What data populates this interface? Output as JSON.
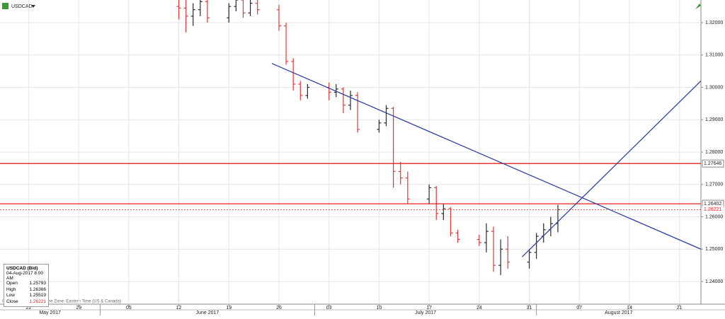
{
  "symbol": "USDCAD",
  "chart_data": {
    "type": "ohlc",
    "x": [
      "2017-06-12",
      "2017-06-13",
      "2017-06-14",
      "2017-06-15",
      "2017-06-16",
      "2017-06-19",
      "2017-06-20",
      "2017-06-21",
      "2017-06-22",
      "2017-06-23",
      "2017-06-26",
      "2017-06-27",
      "2017-06-28",
      "2017-06-29",
      "2017-06-30",
      "2017-07-03",
      "2017-07-04",
      "2017-07-05",
      "2017-07-06",
      "2017-07-07",
      "2017-07-10",
      "2017-07-11",
      "2017-07-12",
      "2017-07-13",
      "2017-07-14",
      "2017-07-17",
      "2017-07-18",
      "2017-07-19",
      "2017-07-20",
      "2017-07-21",
      "2017-07-24",
      "2017-07-25",
      "2017-07-26",
      "2017-07-27",
      "2017-07-28",
      "2017-07-31",
      "2017-08-01",
      "2017-08-02",
      "2017-08-03",
      "2017-08-04"
    ],
    "open": [
      1.325,
      1.3245,
      1.322,
      1.324,
      1.3265,
      1.3215,
      1.325,
      1.327,
      1.323,
      1.326,
      1.324,
      1.319,
      1.308,
      1.301,
      1.2975,
      1.3,
      1.2985,
      1.2995,
      1.2945,
      1.2975,
      1.287,
      1.289,
      1.2935,
      1.274,
      1.272,
      1.2655,
      1.269,
      1.261,
      1.2625,
      1.255,
      1.253,
      1.252,
      1.2555,
      1.245,
      1.25,
      1.246,
      1.249,
      1.254,
      1.256,
      1.2579
    ],
    "high": [
      1.329,
      1.327,
      1.326,
      1.328,
      1.3275,
      1.326,
      1.3285,
      1.329,
      1.3275,
      1.3275,
      1.3255,
      1.32,
      1.309,
      1.302,
      1.301,
      1.3015,
      1.301,
      1.3,
      1.299,
      1.2985,
      1.29,
      1.2945,
      1.294,
      1.277,
      1.274,
      1.27,
      1.2695,
      1.264,
      1.263,
      1.256,
      1.2545,
      1.258,
      1.257,
      1.253,
      1.254,
      1.25,
      1.255,
      1.258,
      1.26,
      1.2637
    ],
    "low": [
      1.321,
      1.317,
      1.319,
      1.322,
      1.32,
      1.32,
      1.3235,
      1.3215,
      1.322,
      1.3225,
      1.3175,
      1.307,
      1.299,
      1.296,
      1.2965,
      1.296,
      1.297,
      1.292,
      1.293,
      1.286,
      1.286,
      1.288,
      1.269,
      1.27,
      1.264,
      1.264,
      1.259,
      1.259,
      1.254,
      1.252,
      1.251,
      1.249,
      1.243,
      1.242,
      1.244,
      1.244,
      1.247,
      1.252,
      1.254,
      1.2552
    ],
    "close": [
      1.3245,
      1.322,
      1.324,
      1.3265,
      1.3215,
      1.325,
      1.327,
      1.323,
      1.326,
      1.324,
      1.319,
      1.308,
      1.301,
      1.2975,
      1.3,
      1.2985,
      1.2995,
      1.2945,
      1.2975,
      1.287,
      1.289,
      1.2935,
      1.274,
      1.272,
      1.2655,
      1.269,
      1.261,
      1.2625,
      1.255,
      1.253,
      1.252,
      1.2555,
      1.245,
      1.25,
      1.246,
      1.249,
      1.254,
      1.256,
      1.2579,
      1.2622
    ],
    "up_color": "#2a2a2a",
    "down_color": "#e03a3a",
    "xlim": [
      "2017-05-18",
      "2017-08-24"
    ],
    "ylim": [
      1.233,
      1.327
    ],
    "yticks": [
      {
        "value": 1.24,
        "label": "1.24000"
      },
      {
        "value": 1.25,
        "label": "1.25000"
      },
      {
        "value": 1.26,
        "label": "1.26000"
      },
      {
        "value": 1.27,
        "label": "1.27000"
      },
      {
        "value": 1.28,
        "label": "1.28000"
      },
      {
        "value": 1.29,
        "label": "1.29000"
      },
      {
        "value": 1.3,
        "label": "1.30000"
      },
      {
        "value": 1.31,
        "label": "1.31000"
      },
      {
        "value": 1.32,
        "label": "1.32000"
      }
    ],
    "xticks": [
      {
        "value": "2017-05-22",
        "label": "22"
      },
      {
        "value": "2017-05-29",
        "label": "29"
      },
      {
        "value": "2017-06-05",
        "label": "05"
      },
      {
        "value": "2017-06-12",
        "label": "12"
      },
      {
        "value": "2017-06-19",
        "label": "19"
      },
      {
        "value": "2017-06-26",
        "label": "26"
      },
      {
        "value": "2017-07-03",
        "label": "03"
      },
      {
        "value": "2017-07-10",
        "label": "10"
      },
      {
        "value": "2017-07-17",
        "label": "17"
      },
      {
        "value": "2017-07-24",
        "label": "24"
      },
      {
        "value": "2017-07-31",
        "label": "31"
      },
      {
        "value": "2017-08-07",
        "label": "07"
      },
      {
        "value": "2017-08-14",
        "label": "14"
      },
      {
        "value": "2017-08-21",
        "label": "21"
      }
    ],
    "months": [
      {
        "value": "2017-05-01",
        "label": "May 2017"
      },
      {
        "value": "2017-06-01",
        "label": "June 2017"
      },
      {
        "value": "2017-07-01",
        "label": "July 2017"
      },
      {
        "value": "2017-08-01",
        "label": "August 2017"
      }
    ],
    "grid": true,
    "hlines": [
      {
        "value": 1.27646,
        "color": "#e02020",
        "style": "solid"
      },
      {
        "value": 1.26402,
        "color": "#e02020",
        "style": "solid"
      },
      {
        "value": 1.26221,
        "color": "#e02020",
        "style": "dashed"
      }
    ],
    "trend_lines": [
      {
        "x": [
          "2017-06-25",
          "2017-08-24"
        ],
        "y": [
          1.3074,
          1.25
        ],
        "color": "#3040a0"
      },
      {
        "x": [
          "2017-07-30",
          "2017-08-24"
        ],
        "y": [
          1.2476,
          1.302
        ],
        "color": "#3040a0"
      }
    ],
    "footnote": "INDICATIVE PRICE - Time Zone: Eastern Time (US & Canada)"
  },
  "info_box": {
    "title": "USDCAD (Bid)",
    "time": "04-Aug-2017 8:00 AM",
    "rows": [
      [
        "Open",
        "1.25793"
      ],
      [
        "High",
        "1.26366"
      ],
      [
        "Low",
        "1.25519"
      ],
      [
        "Close",
        "1.26221"
      ]
    ]
  }
}
